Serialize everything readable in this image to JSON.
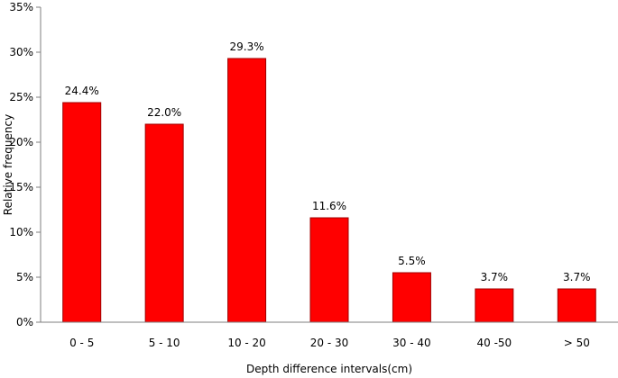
{
  "chart_data": {
    "type": "bar",
    "categories": [
      "0 - 5",
      "5 - 10",
      "10 - 20",
      "20 - 30",
      "30 - 40",
      "40 -50",
      "> 50"
    ],
    "values": [
      24.4,
      22.0,
      29.3,
      11.6,
      5.5,
      3.7,
      3.7
    ],
    "data_labels": [
      "24.4%",
      "22.0%",
      "29.3%",
      "11.6%",
      "5.5%",
      "3.7%",
      "3.7%"
    ],
    "title": "",
    "xlabel": "Depth difference intervals(cm)",
    "ylabel": "Relative frequency",
    "ylim": [
      0,
      35
    ],
    "yticks": [
      0,
      5,
      10,
      15,
      20,
      25,
      30,
      35
    ],
    "ytick_labels": [
      "0%",
      "5%",
      "10%",
      "15%",
      "20%",
      "25%",
      "30%",
      "35%"
    ],
    "grid": false,
    "legend": "none",
    "bar_color": "#ff0000",
    "bar_edge_color": "#a00000"
  }
}
